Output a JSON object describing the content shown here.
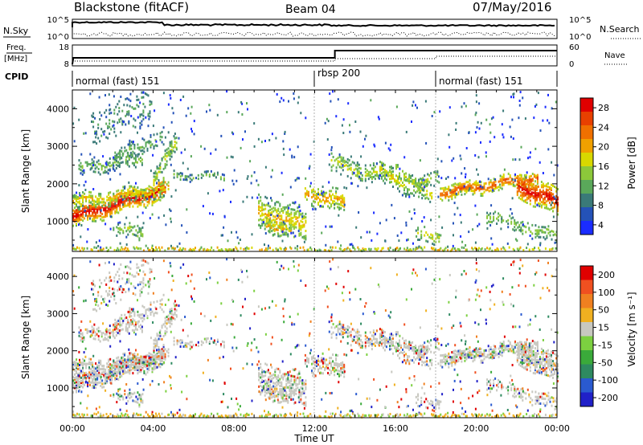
{
  "header": {
    "station": "Blackstone (fitACF)",
    "beam": "Beam 04",
    "date": "07/May/2016"
  },
  "colors": {
    "axis": "#000000",
    "nsky_line": "#000000",
    "freq_line": "#000000",
    "separator": "#b0b0b0",
    "ground_scatter": "#c8c8c0"
  },
  "top_panels": {
    "nsky_label": "N.Sky",
    "nsearch_label": "N.Search",
    "nsky_ticks": [
      "10^5",
      "10^0"
    ],
    "nsearch_ticks": [
      "10^5",
      "10^0"
    ],
    "freq_label_1": "Freq.",
    "freq_label_2": "[MHz]",
    "freq_ticks": [
      "18",
      "8"
    ],
    "nave_label": "Nave",
    "nave_ticks": [
      "60",
      "0"
    ],
    "cpid_label": "CPID"
  },
  "cpid_segments": [
    {
      "label": "normal (fast) 151",
      "start_hour": 0,
      "end_hour": 12
    },
    {
      "label": "rbsp 200",
      "start_hour": 12,
      "end_hour": 18
    },
    {
      "label": "normal (fast) 151",
      "start_hour": 18,
      "end_hour": 24
    }
  ],
  "chart_data": [
    {
      "type": "heatmap",
      "panel": "power",
      "ylabel": "Slant Range [km]",
      "y_ticks": [
        1000,
        2000,
        3000,
        4000
      ],
      "ylim": [
        200,
        4500
      ],
      "colorbar_label": "Power [dB]",
      "colorbar_ticks": [
        4,
        8,
        12,
        16,
        20,
        24,
        28
      ],
      "colorbar_colors": [
        "#1a2cff",
        "#2452b8",
        "#3a7a78",
        "#5aa85a",
        "#8cc83a",
        "#d8d800",
        "#f0a000",
        "#f07000",
        "#e84000",
        "#e00000"
      ]
    },
    {
      "type": "heatmap",
      "panel": "velocity",
      "ylabel": "Slant Range [km]",
      "y_ticks": [
        1000,
        2000,
        3000,
        4000
      ],
      "ylim": [
        200,
        4500
      ],
      "colorbar_label": "Velocity [m s⁻¹]",
      "colorbar_ticks": [
        200,
        100,
        50,
        15,
        -15,
        -50,
        -100,
        -200
      ],
      "colorbar_colors": [
        "#2020c8",
        "#2a5ad0",
        "#2e8a60",
        "#3aaa3a",
        "#7cd040",
        "#c8c8c0",
        "#f0b020",
        "#f08020",
        "#f05020",
        "#e00000"
      ],
      "xlabel": "Time UT",
      "x_ticks": [
        "00:00",
        "04:00",
        "08:00",
        "12:00",
        "16:00",
        "20:00",
        "00:00"
      ],
      "xlim_hours": [
        0,
        24
      ]
    }
  ]
}
